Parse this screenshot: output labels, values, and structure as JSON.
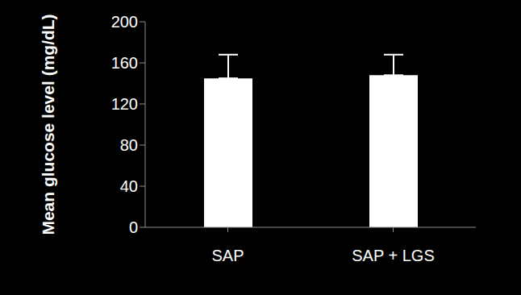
{
  "chart_data": {
    "type": "bar",
    "y_label": "Mean glucose level (mg/dL)",
    "categories": [
      "SAP",
      "SAP + LGS"
    ],
    "values": [
      145,
      148
    ],
    "errors": [
      23,
      20
    ],
    "color": "#ffffff",
    "ylim": [
      0,
      200
    ],
    "yticks": [
      0,
      40,
      80,
      120,
      160,
      200
    ],
    "grid": false
  }
}
